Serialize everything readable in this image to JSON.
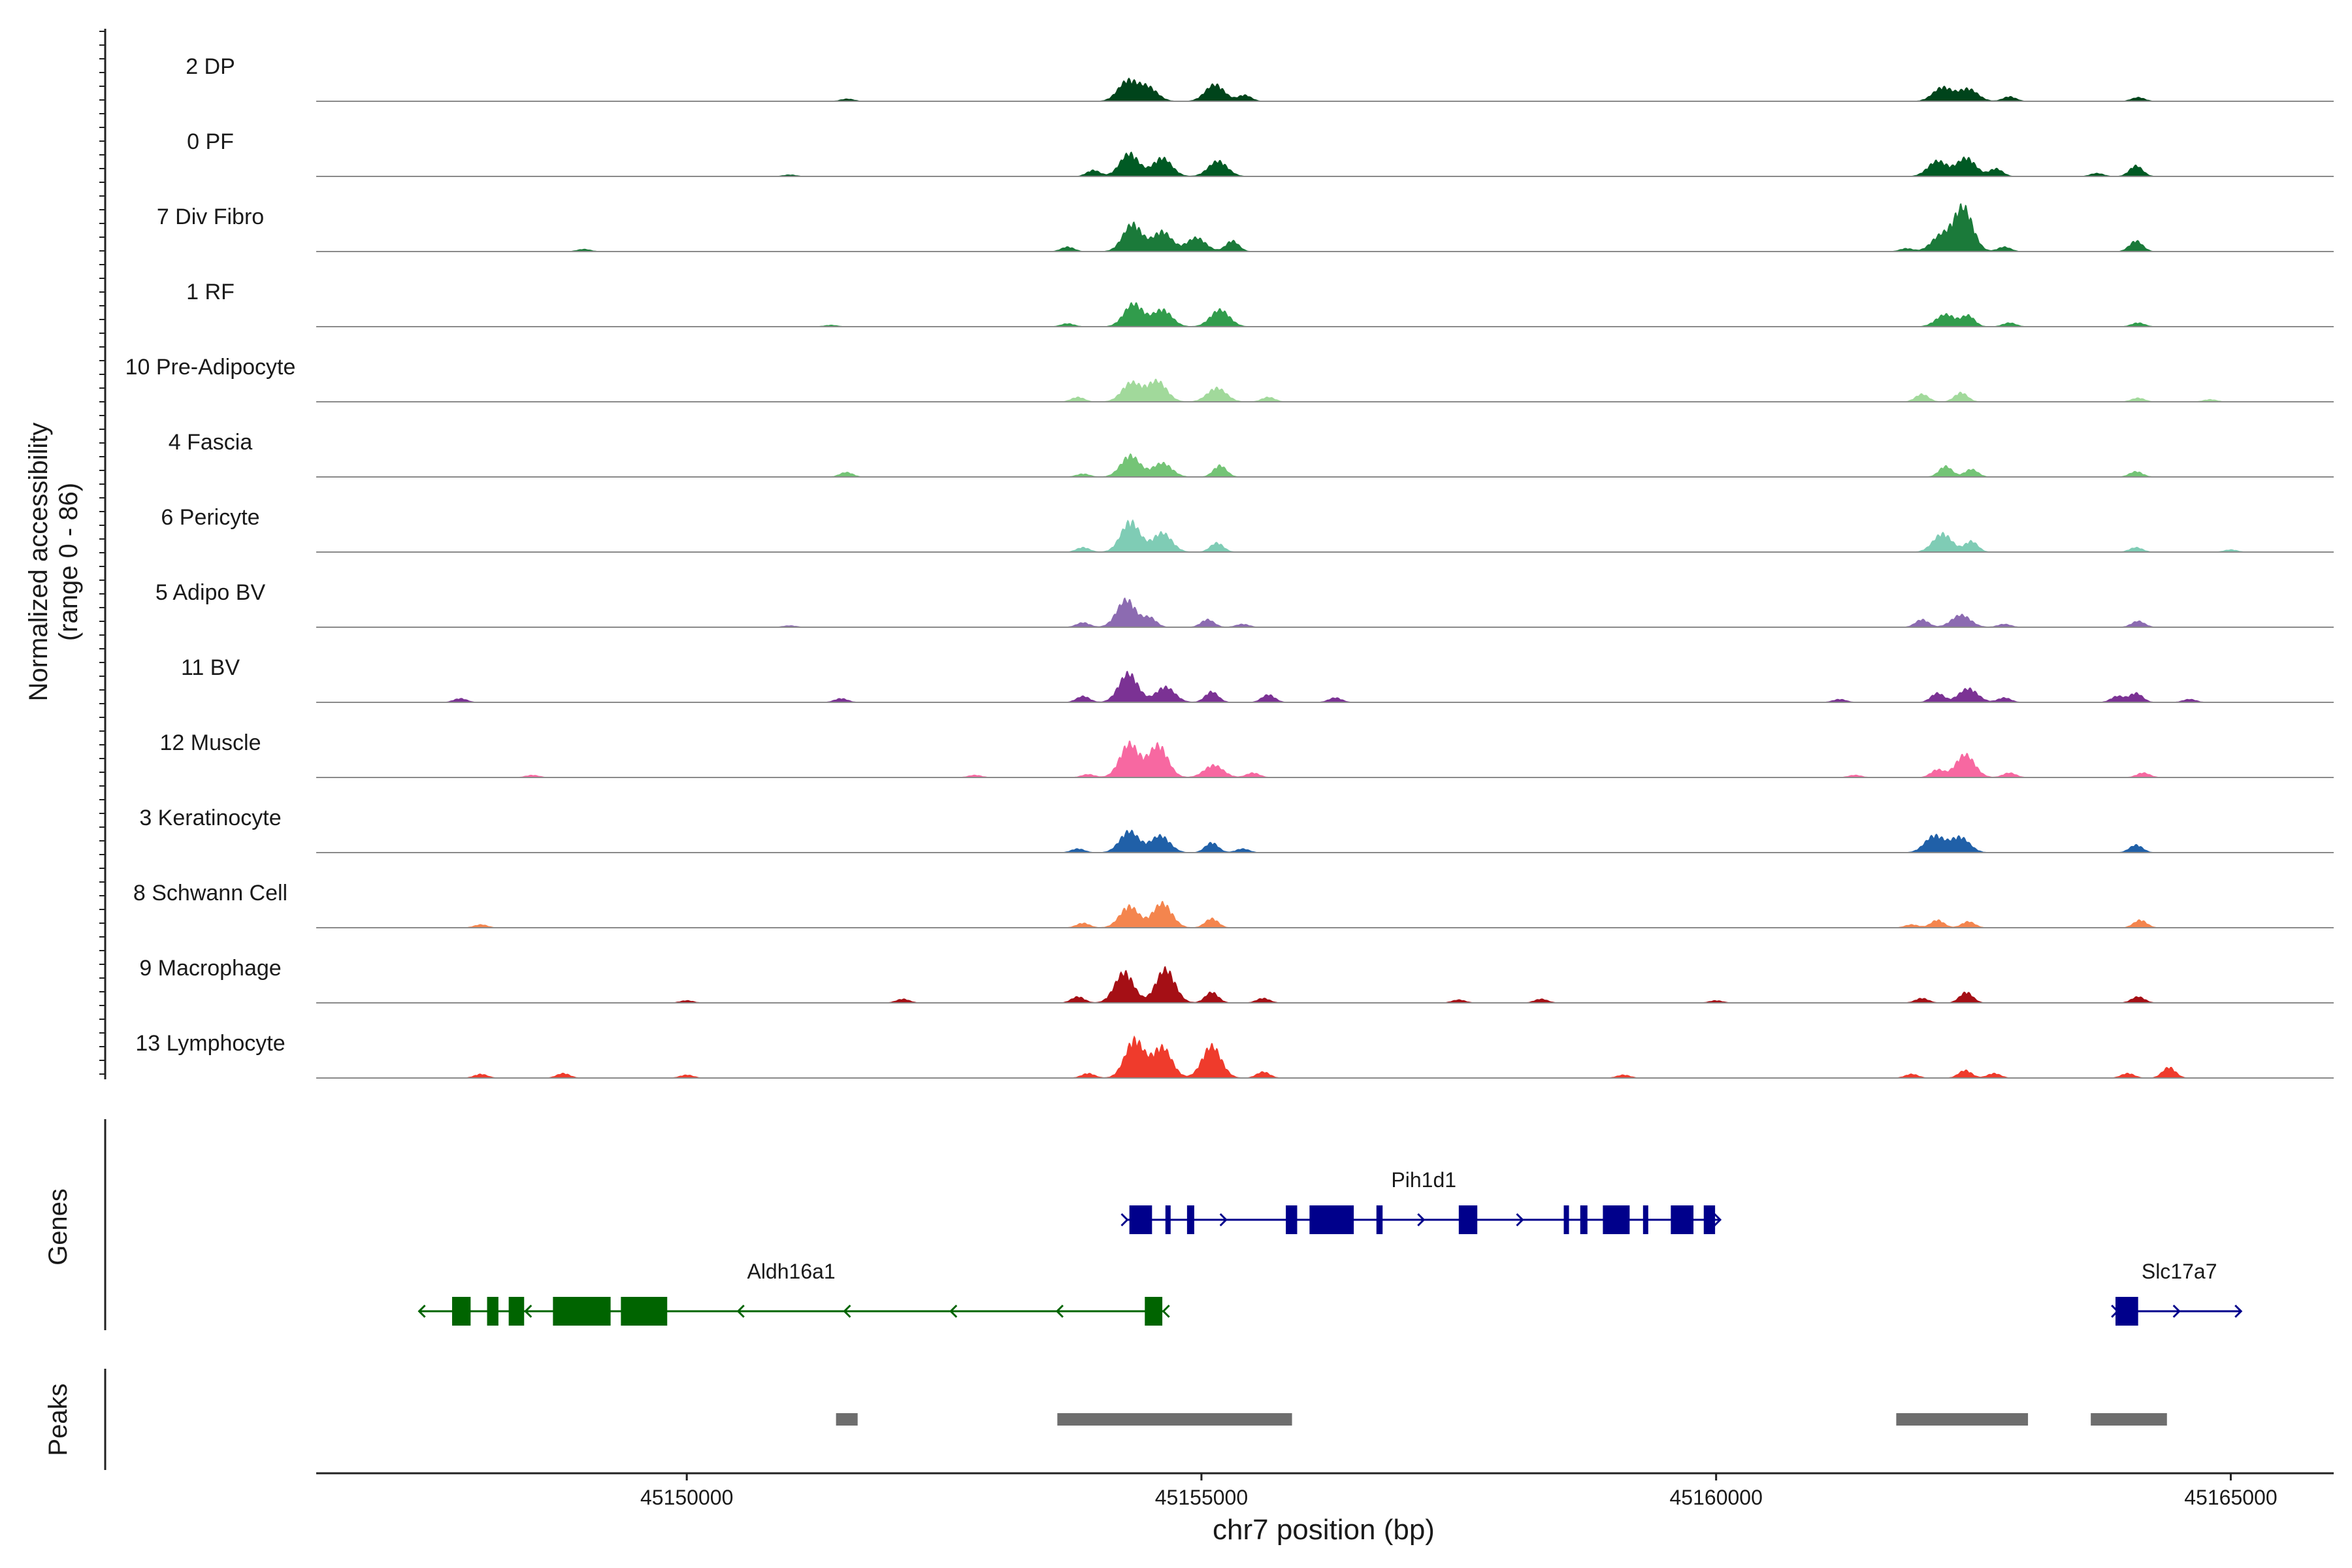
{
  "chart_data": {
    "type": "area",
    "subtype": "genome-coverage-tracks",
    "ylabel_line1": "Normalized accessibility",
    "ylabel_line2": "(range 0 - 86)",
    "y_range": [
      0,
      86
    ],
    "xlabel": "chr7 position (bp)",
    "xlim": [
      45146400,
      45166000
    ],
    "x_ticks": [
      {
        "value": 45150000,
        "label": "45150000"
      },
      {
        "value": 45155000,
        "label": "45155000"
      },
      {
        "value": 45160000,
        "label": "45160000"
      },
      {
        "value": 45165000,
        "label": "45165000"
      }
    ],
    "tracks": [
      {
        "name": "2 DP",
        "color": "#00441b",
        "peaks": [
          [
            45154280,
            26
          ],
          [
            45154480,
            18
          ],
          [
            45155130,
            22
          ],
          [
            45155420,
            8
          ],
          [
            45151560,
            3
          ],
          [
            45162200,
            18
          ],
          [
            45162450,
            16
          ],
          [
            45162850,
            6
          ],
          [
            45164100,
            5
          ]
        ]
      },
      {
        "name": "0 PF",
        "color": "#005a24",
        "peaks": [
          [
            45154300,
            30
          ],
          [
            45154620,
            24
          ],
          [
            45155160,
            20
          ],
          [
            45153950,
            8
          ],
          [
            45151000,
            2
          ],
          [
            45162150,
            20
          ],
          [
            45162430,
            24
          ],
          [
            45162720,
            10
          ],
          [
            45164080,
            14
          ],
          [
            45163700,
            4
          ]
        ]
      },
      {
        "name": "7 Div Fibro",
        "color": "#1b7a3a",
        "peaks": [
          [
            45154330,
            36
          ],
          [
            45154620,
            26
          ],
          [
            45154950,
            18
          ],
          [
            45155300,
            14
          ],
          [
            45153700,
            6
          ],
          [
            45149000,
            3
          ],
          [
            45161850,
            4
          ],
          [
            45162180,
            20
          ],
          [
            45162400,
            58
          ],
          [
            45162800,
            6
          ],
          [
            45164080,
            14
          ]
        ]
      },
      {
        "name": "1 RF",
        "color": "#319c4c",
        "peaks": [
          [
            45154340,
            30
          ],
          [
            45154620,
            22
          ],
          [
            45155180,
            22
          ],
          [
            45153700,
            4
          ],
          [
            45151400,
            2
          ],
          [
            45162230,
            16
          ],
          [
            45162450,
            14
          ],
          [
            45162850,
            5
          ],
          [
            45164100,
            5
          ]
        ]
      },
      {
        "name": "10 Pre-Adipocyte",
        "color": "#a1d99b",
        "peaks": [
          [
            45154320,
            25
          ],
          [
            45154570,
            27
          ],
          [
            45155150,
            18
          ],
          [
            45155650,
            6
          ],
          [
            45153800,
            6
          ],
          [
            45162000,
            10
          ],
          [
            45162380,
            12
          ],
          [
            45164100,
            5
          ],
          [
            45164800,
            3
          ]
        ]
      },
      {
        "name": "4 Fascia",
        "color": "#74c476",
        "peaks": [
          [
            45154310,
            28
          ],
          [
            45154620,
            18
          ],
          [
            45155180,
            15
          ],
          [
            45151550,
            6
          ],
          [
            45153850,
            4
          ],
          [
            45162230,
            14
          ],
          [
            45162480,
            10
          ],
          [
            45164080,
            7
          ]
        ]
      },
      {
        "name": "6 Pericyte",
        "color": "#7fccb5",
        "peaks": [
          [
            45154310,
            40
          ],
          [
            45154620,
            25
          ],
          [
            45155150,
            12
          ],
          [
            45153850,
            6
          ],
          [
            45162200,
            24
          ],
          [
            45162480,
            14
          ],
          [
            45164080,
            6
          ],
          [
            45165000,
            3
          ]
        ]
      },
      {
        "name": "5 Adipo BV",
        "color": "#8c6bb1",
        "peaks": [
          [
            45154270,
            36
          ],
          [
            45154500,
            12
          ],
          [
            45155060,
            10
          ],
          [
            45155400,
            4
          ],
          [
            45153850,
            6
          ],
          [
            45162000,
            10
          ],
          [
            45162380,
            16
          ],
          [
            45162800,
            4
          ],
          [
            45164100,
            8
          ],
          [
            45151000,
            2
          ]
        ]
      },
      {
        "name": "11 BV",
        "color": "#7b3294",
        "peaks": [
          [
            45154290,
            38
          ],
          [
            45154650,
            20
          ],
          [
            45155100,
            14
          ],
          [
            45155650,
            10
          ],
          [
            45156300,
            6
          ],
          [
            45153850,
            8
          ],
          [
            45151500,
            5
          ],
          [
            45147800,
            5
          ],
          [
            45161200,
            4
          ],
          [
            45162150,
            12
          ],
          [
            45162450,
            18
          ],
          [
            45162800,
            6
          ],
          [
            45163900,
            8
          ],
          [
            45164080,
            12
          ],
          [
            45164600,
            4
          ]
        ]
      },
      {
        "name": "12 Muscle",
        "color": "#f768a1",
        "peaks": [
          [
            45154300,
            44
          ],
          [
            45154580,
            42
          ],
          [
            45155120,
            16
          ],
          [
            45155500,
            6
          ],
          [
            45153900,
            4
          ],
          [
            45152800,
            3
          ],
          [
            45148500,
            3
          ],
          [
            45162150,
            10
          ],
          [
            45162420,
            30
          ],
          [
            45162850,
            6
          ],
          [
            45164150,
            6
          ],
          [
            45161350,
            3
          ]
        ]
      },
      {
        "name": "3 Keratinocyte",
        "color": "#2060a8",
        "peaks": [
          [
            45154300,
            28
          ],
          [
            45154600,
            22
          ],
          [
            45155100,
            13
          ],
          [
            45155400,
            5
          ],
          [
            45153800,
            5
          ],
          [
            45162120,
            22
          ],
          [
            45162370,
            20
          ],
          [
            45164080,
            10
          ]
        ]
      },
      {
        "name": "8 Schwann Cell",
        "color": "#f4854e",
        "peaks": [
          [
            45154300,
            28
          ],
          [
            45154620,
            32
          ],
          [
            45155100,
            12
          ],
          [
            45153850,
            6
          ],
          [
            45148000,
            4
          ],
          [
            45162150,
            10
          ],
          [
            45162450,
            8
          ],
          [
            45164120,
            10
          ],
          [
            45161900,
            4
          ]
        ]
      },
      {
        "name": "9 Macrophage",
        "color": "#a50f15",
        "peaks": [
          [
            45154250,
            40
          ],
          [
            45154650,
            44
          ],
          [
            45155100,
            14
          ],
          [
            45155600,
            6
          ],
          [
            45153800,
            8
          ],
          [
            45152100,
            5
          ],
          [
            45150000,
            3
          ],
          [
            45157500,
            4
          ],
          [
            45158300,
            5
          ],
          [
            45162430,
            14
          ],
          [
            45162000,
            6
          ],
          [
            45164100,
            8
          ],
          [
            45160000,
            3
          ]
        ]
      },
      {
        "name": "13 Lymphocyte",
        "color": "#ef3b2c",
        "peaks": [
          [
            45154350,
            50
          ],
          [
            45154620,
            40
          ],
          [
            45155100,
            42
          ],
          [
            45155600,
            8
          ],
          [
            45153900,
            6
          ],
          [
            45148000,
            5
          ],
          [
            45148800,
            6
          ],
          [
            45150000,
            4
          ],
          [
            45159100,
            4
          ],
          [
            45161900,
            5
          ],
          [
            45162420,
            10
          ],
          [
            45162700,
            6
          ],
          [
            45164000,
            6
          ],
          [
            45164400,
            14
          ]
        ]
      }
    ],
    "genes": [
      {
        "name": "Pih1d1",
        "strand": "+",
        "color": "#00008b",
        "start": 45154280,
        "end": 45160040,
        "exons": [
          [
            45154300,
            45154520
          ],
          [
            45154650,
            45154680
          ],
          [
            45154860,
            45154930
          ],
          [
            45155820,
            45155930
          ],
          [
            45156050,
            45156480
          ],
          [
            45156700,
            45156760
          ],
          [
            45157500,
            45157680
          ],
          [
            45158520,
            45158570
          ],
          [
            45158680,
            45158750
          ],
          [
            45158900,
            45159160
          ],
          [
            45159290,
            45159340
          ],
          [
            45159560,
            45159780
          ],
          [
            45159880,
            45159990
          ]
        ]
      },
      {
        "name": "Aldh16a1",
        "strand": "-",
        "color": "#006400",
        "start": 45147400,
        "end": 45154630,
        "exons": [
          [
            45147720,
            45147900
          ],
          [
            45148060,
            45148170
          ],
          [
            45148270,
            45148420
          ],
          [
            45148700,
            45149260
          ],
          [
            45149360,
            45149810
          ],
          [
            45154450,
            45154620
          ]
        ]
      },
      {
        "name": "Slc17a7",
        "strand": "+",
        "color": "#00008b",
        "start": 45163900,
        "end": 45165100,
        "exons": [
          [
            45163880,
            45164100
          ]
        ]
      }
    ],
    "peaks_track": [
      [
        45151450,
        45151660
      ],
      [
        45153600,
        45155880
      ],
      [
        45161750,
        45163030
      ],
      [
        45163640,
        45164380
      ]
    ],
    "panel_labels": {
      "genes": "Genes",
      "peaks": "Peaks"
    }
  }
}
